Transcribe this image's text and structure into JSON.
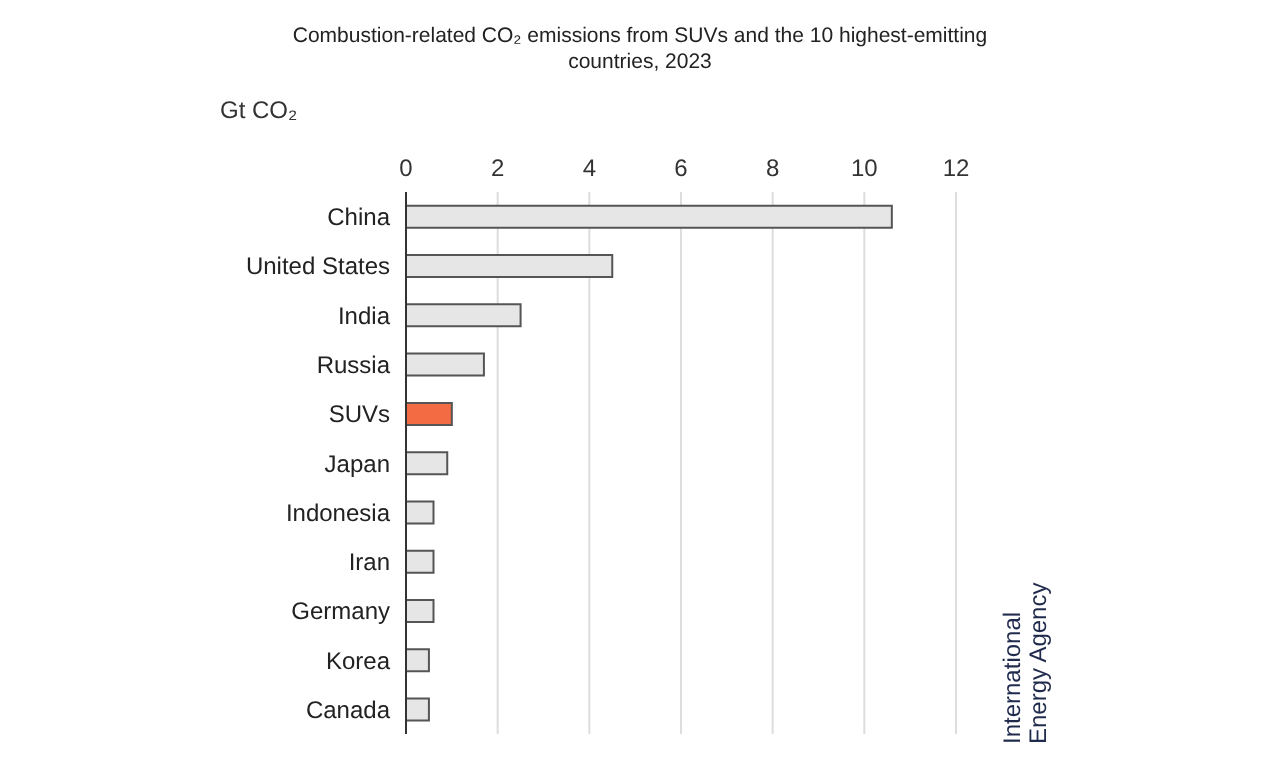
{
  "chart_data": {
    "type": "bar",
    "orientation": "horizontal",
    "title": "Combustion-related CO₂ emissions from SUVs and the 10 highest-emitting countries, 2023",
    "xlabel": "Gt CO₂",
    "categories": [
      "China",
      "United States",
      "India",
      "Russia",
      "SUVs",
      "Japan",
      "Indonesia",
      "Iran",
      "Germany",
      "Korea",
      "Canada"
    ],
    "values": [
      10.6,
      4.5,
      2.5,
      1.7,
      1.0,
      0.9,
      0.6,
      0.6,
      0.6,
      0.5,
      0.5
    ],
    "colors": [
      "#e6e6e6",
      "#e6e6e6",
      "#e6e6e6",
      "#e6e6e6",
      "#f26b43",
      "#e6e6e6",
      "#e6e6e6",
      "#e6e6e6",
      "#e6e6e6",
      "#e6e6e6",
      "#e6e6e6"
    ],
    "xlim": [
      0,
      12
    ],
    "xticks": [
      0,
      2,
      4,
      6,
      8,
      10,
      12
    ],
    "grid": "x",
    "annotations": [
      "International Energy Agency"
    ]
  }
}
